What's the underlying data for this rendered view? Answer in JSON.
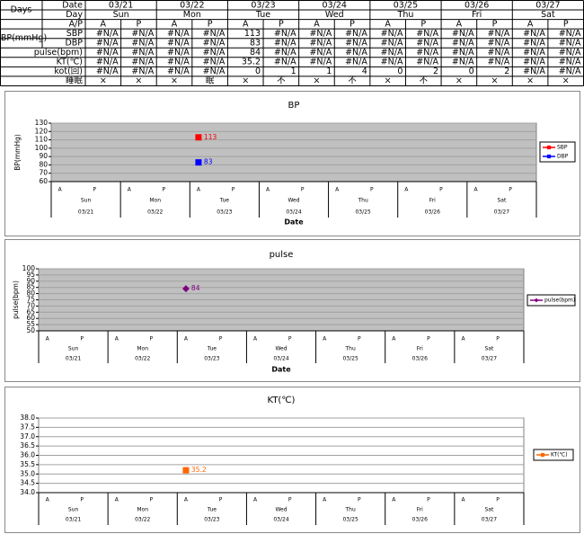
{
  "table": {
    "corner": "Days",
    "header_labels": [
      "Date",
      "Day",
      "A/P"
    ],
    "dates": [
      "03/21",
      "03/22",
      "03/23",
      "03/24",
      "03/25",
      "03/26",
      "03/27"
    ],
    "days": [
      "Sun",
      "Mon",
      "Tue",
      "Wed",
      "Thu",
      "Fri",
      "Sat"
    ],
    "ap": [
      "A",
      "P",
      "A",
      "P",
      "A",
      "P",
      "A",
      "P",
      "A",
      "P",
      "A",
      "P",
      "A",
      "P"
    ],
    "group": "BP(mmHg)",
    "rows": [
      {
        "label": "SBP",
        "cells": [
          "#N/A",
          "#N/A",
          "#N/A",
          "#N/A",
          113,
          "#N/A",
          "#N/A",
          "#N/A",
          "#N/A",
          "#N/A",
          "#N/A",
          "#N/A",
          "#N/A",
          "#N/A"
        ]
      },
      {
        "label": "DBP",
        "cells": [
          "#N/A",
          "#N/A",
          "#N/A",
          "#N/A",
          83,
          "#N/A",
          "#N/A",
          "#N/A",
          "#N/A",
          "#N/A",
          "#N/A",
          "#N/A",
          "#N/A",
          "#N/A"
        ]
      },
      {
        "label": "pulse(bpm)",
        "cells": [
          "#N/A",
          "#N/A",
          "#N/A",
          "#N/A",
          84,
          "#N/A",
          "#N/A",
          "#N/A",
          "#N/A",
          "#N/A",
          "#N/A",
          "#N/A",
          "#N/A",
          "#N/A"
        ]
      },
      {
        "label": "KT(℃)",
        "cells": [
          "#N/A",
          "#N/A",
          "#N/A",
          "#N/A",
          35.2,
          "#N/A",
          "#N/A",
          "#N/A",
          "#N/A",
          "#N/A",
          "#N/A",
          "#N/A",
          "#N/A",
          "#N/A"
        ]
      },
      {
        "label": "kot(回)",
        "cells": [
          "#N/A",
          "#N/A",
          "#N/A",
          "#N/A",
          0,
          1,
          1,
          4,
          0,
          2,
          0,
          2,
          "#N/A",
          "#N/A"
        ]
      },
      {
        "label": "睡眠",
        "cells": [
          "×",
          "×",
          "×",
          "眠",
          "×",
          "不",
          "×",
          "不",
          "×",
          "不",
          "×",
          "×",
          "×",
          "×"
        ]
      }
    ]
  },
  "chart_data": [
    {
      "type": "line",
      "title": "BP",
      "y_label": "BP(mmHg)",
      "x_label": "Date",
      "categories": [
        "A",
        "P",
        "A",
        "P",
        "A",
        "P",
        "A",
        "P",
        "A",
        "P",
        "A",
        "P",
        "A",
        "P"
      ],
      "groups": [
        "Sun",
        "Mon",
        "Tue",
        "Wed",
        "Thu",
        "Fri",
        "Sat"
      ],
      "group_labels": [
        "03/21",
        "03/22",
        "03/23",
        "03/24",
        "03/25",
        "03/26",
        "03/27"
      ],
      "ylim": [
        60,
        130
      ],
      "yticks": [
        60,
        70,
        80,
        90,
        100,
        110,
        120,
        130
      ],
      "grid": true,
      "plot_color": "#c0c0c0",
      "legend": "right",
      "series": [
        {
          "name": "SBP",
          "color": "#ff0000",
          "marker": "square",
          "values": [
            null,
            null,
            null,
            null,
            113,
            null,
            null,
            null,
            null,
            null,
            null,
            null,
            null,
            null
          ]
        },
        {
          "name": "DBP",
          "color": "#0000ff",
          "marker": "square",
          "values": [
            null,
            null,
            null,
            null,
            83,
            null,
            null,
            null,
            null,
            null,
            null,
            null,
            null,
            null
          ]
        }
      ]
    },
    {
      "type": "line",
      "title": "pulse",
      "y_label": "pulse(bpm)",
      "x_label": "Date",
      "categories": [
        "A",
        "P",
        "A",
        "P",
        "A",
        "P",
        "A",
        "P",
        "A",
        "P",
        "A",
        "P",
        "A",
        "P"
      ],
      "groups": [
        "Sun",
        "Mon",
        "Tue",
        "Wed",
        "Thu",
        "Fri",
        "Sat"
      ],
      "group_labels": [
        "03/21",
        "03/22",
        "03/23",
        "03/24",
        "03/25",
        "03/26",
        "03/27"
      ],
      "ylim": [
        50,
        100
      ],
      "yticks": [
        50,
        55,
        60,
        65,
        70,
        75,
        80,
        85,
        90,
        95,
        100
      ],
      "grid": true,
      "plot_color": "#c0c0c0",
      "legend": "right",
      "series": [
        {
          "name": "pulse(bpm)",
          "color": "#800080",
          "marker": "diamond",
          "values": [
            null,
            null,
            null,
            null,
            84,
            null,
            null,
            null,
            null,
            null,
            null,
            null,
            null,
            null
          ]
        }
      ]
    },
    {
      "type": "line",
      "title": "KT(℃)",
      "categories": [
        "A",
        "P",
        "A",
        "P",
        "A",
        "P",
        "A",
        "P",
        "A",
        "P",
        "A",
        "P",
        "A",
        "P"
      ],
      "groups": [
        "Sun",
        "Mon",
        "Tue",
        "Wed",
        "Thu",
        "Fri",
        "Sat"
      ],
      "group_labels": [
        "03/21",
        "03/22",
        "03/23",
        "03/24",
        "03/25",
        "03/26",
        "03/27"
      ],
      "ylim": [
        34,
        38
      ],
      "yticks": [
        {
          "value": 34,
          "label": "34.0"
        },
        34.5,
        {
          "value": 35,
          "label": "35.0"
        },
        35.5,
        {
          "value": 36,
          "label": "36.0"
        },
        36.5,
        {
          "value": 37,
          "label": "37.0"
        },
        37.5,
        {
          "value": 38,
          "label": "38.0"
        }
      ],
      "grid": true,
      "plot_color": "#ffffff",
      "legend": "right",
      "series": [
        {
          "name": "KT(℃)",
          "color": "#ff6600",
          "marker": "square",
          "values": [
            null,
            null,
            null,
            null,
            35.2,
            null,
            null,
            null,
            null,
            null,
            null,
            null,
            null,
            null
          ]
        }
      ]
    }
  ]
}
